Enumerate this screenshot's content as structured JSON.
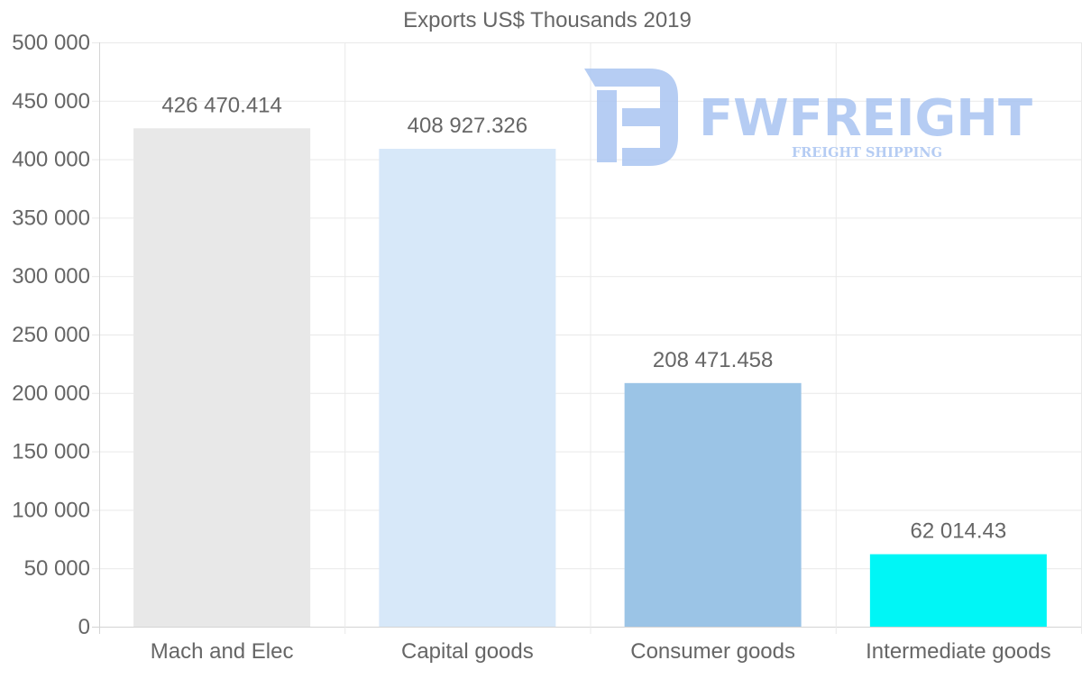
{
  "chart_data": {
    "type": "bar",
    "title": "Exports US$ Thousands 2019",
    "categories": [
      "Mach and Elec",
      "Capital goods",
      "Consumer goods",
      "Intermediate goods"
    ],
    "values": [
      426470.414,
      408927.326,
      208471.458,
      62014.43
    ],
    "value_labels": [
      "426 470.414",
      "408 927.326",
      "208 471.458",
      "62 014.43"
    ],
    "bar_colors": [
      "#e8e8e8",
      "#d7e8f9",
      "#9bc4e6",
      "#00f6f6"
    ],
    "ylim": [
      0,
      500000
    ],
    "yticks": [
      0,
      50000,
      100000,
      150000,
      200000,
      250000,
      300000,
      350000,
      400000,
      450000,
      500000
    ],
    "ytick_labels": [
      "0",
      "50 000",
      "100 000",
      "150 000",
      "200 000",
      "250 000",
      "300 000",
      "350 000",
      "400 000",
      "450 000",
      "500 000"
    ],
    "xlabel": "",
    "ylabel": "",
    "grid": true
  },
  "watermark": {
    "brand": "FWFREIGHT",
    "tagline": "FREIGHT SHIPPING",
    "color": "#a9c4f1"
  }
}
